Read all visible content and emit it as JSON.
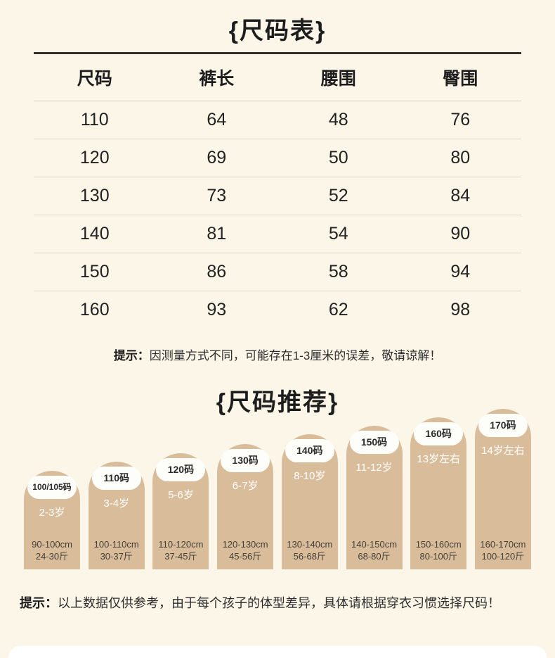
{
  "size_table": {
    "title": "{尺码表}",
    "headers": [
      "尺码",
      "裤长",
      "腰围",
      "臀围"
    ],
    "rows": [
      [
        "110",
        "64",
        "48",
        "76"
      ],
      [
        "120",
        "69",
        "50",
        "80"
      ],
      [
        "130",
        "73",
        "52",
        "84"
      ],
      [
        "140",
        "81",
        "54",
        "90"
      ],
      [
        "150",
        "86",
        "58",
        "94"
      ],
      [
        "160",
        "93",
        "62",
        "98"
      ]
    ],
    "tip_label": "提示：",
    "tip_text": "因测量方式不同，可能存在1-3厘米的误差，敬请谅解！"
  },
  "recommend": {
    "title": "{尺码推荐}",
    "items": [
      {
        "code": "100/105码",
        "age": "2-3岁",
        "height": "90-100cm",
        "weight": "24-30斤"
      },
      {
        "code": "110码",
        "age": "3-4岁",
        "height": "100-110cm",
        "weight": "30-37斤"
      },
      {
        "code": "120码",
        "age": "5-6岁",
        "height": "110-120cm",
        "weight": "37-45斤"
      },
      {
        "code": "130码",
        "age": "6-7岁",
        "height": "120-130cm",
        "weight": "45-56斤"
      },
      {
        "code": "140码",
        "age": "8-10岁",
        "height": "130-140cm",
        "weight": "56-68斤"
      },
      {
        "code": "150码",
        "age": "11-12岁",
        "height": "140-150cm",
        "weight": "68-80斤"
      },
      {
        "code": "160码",
        "age": "13岁左右",
        "height": "150-160cm",
        "weight": "80-100斤"
      },
      {
        "code": "170码",
        "age": "14岁左右",
        "height": "160-170cm",
        "weight": "100-120斤"
      }
    ],
    "tip_label": "提示：",
    "tip_text": "以上数据仅供参考，由于每个孩子的体型差异，具体请根据穿衣习惯选择尺码！"
  },
  "colors": {
    "background": "#fcf6e8",
    "capsule": "#d9bd9a",
    "badge_bg": "#fdfdfa",
    "text_dark": "#1d1d1d",
    "age_text": "#ffffff"
  },
  "chart_data": {
    "type": "table",
    "title": "{尺码表}",
    "columns": [
      "尺码",
      "裤长",
      "腰围",
      "臀围"
    ],
    "rows": [
      [
        110,
        64,
        48,
        76
      ],
      [
        120,
        69,
        50,
        80
      ],
      [
        130,
        73,
        52,
        84
      ],
      [
        140,
        81,
        54,
        90
      ],
      [
        150,
        86,
        58,
        94
      ],
      [
        160,
        93,
        62,
        98
      ]
    ]
  }
}
